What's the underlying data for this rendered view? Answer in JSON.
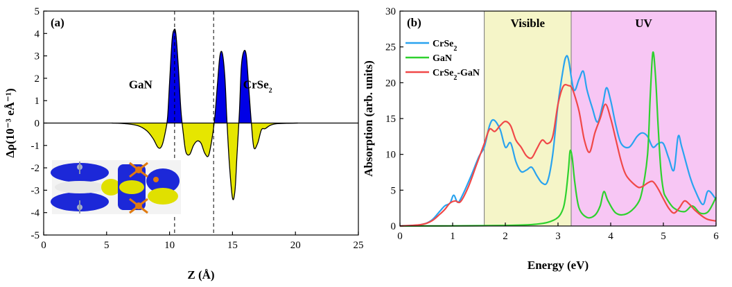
{
  "chart_data": [
    {
      "type": "area",
      "panel_label": "(a)",
      "xlabel": "Z (Å)",
      "ylabel": "Δρ(10⁻³ eÅ⁻¹)",
      "xlim": [
        0,
        25
      ],
      "ylim": [
        -5,
        5
      ],
      "xticks": [
        0,
        5,
        10,
        15,
        20,
        25
      ],
      "yticks": [
        -5,
        -4,
        -3,
        -2,
        -1,
        0,
        1,
        2,
        3,
        4,
        5
      ],
      "positive_fill_color": "#0000e6",
      "negative_fill_color": "#e6e600",
      "line_color": "#000000",
      "interfaces_dashed_x": [
        10.4,
        13.5
      ],
      "annotations": [
        {
          "text": "GaN",
          "x": 7.7,
          "y": 1.55
        },
        {
          "text": "CrSe",
          "sub": "2",
          "x": 17.0,
          "y": 1.55
        }
      ],
      "x": [
        5.4,
        6.5,
        7.5,
        8.2,
        8.7,
        9.1,
        9.4,
        9.7,
        9.85,
        10.0,
        10.2,
        10.35,
        10.5,
        10.7,
        10.9,
        11.1,
        11.3,
        11.6,
        11.9,
        12.2,
        12.5,
        12.8,
        13.1,
        13.4,
        13.6,
        13.8,
        14.0,
        14.2,
        14.4,
        14.55,
        14.75,
        15.0,
        15.2,
        15.35,
        15.55,
        15.7,
        15.9,
        16.1,
        16.3,
        16.5,
        16.7,
        17.0,
        17.3,
        17.6,
        18.0,
        18.5,
        19.3,
        20.2
      ],
      "y": [
        0,
        -0.03,
        -0.12,
        -0.35,
        -0.7,
        -1.1,
        -1.0,
        -0.3,
        0.3,
        1.8,
        3.7,
        4.15,
        4.0,
        2.5,
        0.6,
        -0.5,
        -1.3,
        -1.4,
        -1.0,
        -0.8,
        -0.9,
        -1.35,
        -1.45,
        -0.6,
        0.3,
        1.7,
        3.0,
        3.1,
        2.0,
        0.2,
        -1.8,
        -3.35,
        -3.0,
        -1.5,
        0.5,
        2.5,
        3.2,
        3.0,
        1.5,
        0.0,
        -1.1,
        -0.9,
        -0.3,
        -0.25,
        -0.1,
        -0.03,
        -0.01,
        0
      ],
      "inset": {
        "description_none": ""
      }
    },
    {
      "type": "line",
      "panel_label": "(b)",
      "xlabel": "Energy (eV)",
      "ylabel": "Absorption (arb. units)",
      "xlim": [
        0,
        6
      ],
      "ylim": [
        0,
        30
      ],
      "xticks": [
        0,
        1,
        2,
        3,
        4,
        5,
        6
      ],
      "yticks": [
        0,
        5,
        10,
        15,
        20,
        25,
        30
      ],
      "regions": [
        {
          "label": "Visible",
          "from": 1.6,
          "to": 3.25,
          "color": "#f5f5c8"
        },
        {
          "label": "UV",
          "from": 3.25,
          "to": 6.0,
          "color": "#f7c6f4"
        }
      ],
      "series": [
        {
          "name": "CrSe",
          "name_sub": "2",
          "name_suffix": "",
          "color": "#29a3ef",
          "x": [
            0,
            0.4,
            0.6,
            0.75,
            0.85,
            0.95,
            1.02,
            1.1,
            1.2,
            1.35,
            1.5,
            1.6,
            1.7,
            1.78,
            1.9,
            2.0,
            2.1,
            2.2,
            2.3,
            2.4,
            2.5,
            2.6,
            2.7,
            2.8,
            2.9,
            3.0,
            3.1,
            3.15,
            3.2,
            3.3,
            3.4,
            3.48,
            3.55,
            3.65,
            3.75,
            3.85,
            3.92,
            4.0,
            4.1,
            4.2,
            4.35,
            4.5,
            4.6,
            4.7,
            4.8,
            4.9,
            5.0,
            5.1,
            5.2,
            5.28,
            5.35,
            5.5,
            5.6,
            5.75,
            5.85,
            6.0
          ],
          "y": [
            0,
            0.2,
            0.8,
            2.0,
            2.8,
            3.2,
            4.3,
            3.3,
            4.5,
            7.0,
            9.7,
            11.0,
            14.0,
            14.8,
            13.5,
            11.0,
            11.6,
            9.0,
            7.6,
            7.8,
            8.2,
            7.0,
            6.0,
            6.2,
            10.0,
            17.0,
            22.0,
            23.6,
            23.2,
            19.0,
            20.5,
            21.6,
            19.0,
            16.5,
            14.5,
            17.0,
            19.3,
            17.5,
            14.0,
            11.5,
            11.0,
            12.5,
            13.0,
            12.5,
            11.0,
            11.5,
            11.5,
            9.5,
            7.8,
            12.5,
            11.0,
            7.0,
            5.0,
            3.0,
            4.9,
            3.7
          ]
        },
        {
          "name": "GaN",
          "name_sub": "",
          "name_suffix": "",
          "color": "#2ed12e",
          "x": [
            0,
            1.0,
            2.0,
            2.5,
            2.8,
            3.0,
            3.1,
            3.15,
            3.2,
            3.23,
            3.27,
            3.32,
            3.4,
            3.55,
            3.7,
            3.8,
            3.87,
            3.95,
            4.1,
            4.3,
            4.5,
            4.6,
            4.7,
            4.75,
            4.8,
            4.85,
            4.9,
            4.95,
            5.0,
            5.05,
            5.2,
            5.4,
            5.55,
            5.7,
            5.85,
            6.0
          ],
          "y": [
            0,
            0.02,
            0.08,
            0.2,
            0.5,
            1.2,
            2.5,
            4.5,
            8.0,
            10.5,
            9.5,
            6.0,
            2.5,
            1.2,
            1.5,
            2.8,
            4.8,
            3.5,
            1.8,
            1.7,
            3.0,
            5.0,
            10.0,
            18.0,
            24.2,
            21.0,
            14.0,
            8.0,
            5.0,
            4.0,
            2.5,
            2.0,
            2.8,
            1.8,
            2.0,
            4.0
          ]
        },
        {
          "name": "CrSe",
          "name_sub": "2",
          "name_suffix": "-GaN",
          "color": "#f04848",
          "x": [
            0,
            0.4,
            0.6,
            0.75,
            0.85,
            0.95,
            1.05,
            1.15,
            1.3,
            1.45,
            1.6,
            1.7,
            1.8,
            1.9,
            2.0,
            2.1,
            2.2,
            2.3,
            2.4,
            2.5,
            2.6,
            2.7,
            2.8,
            2.9,
            3.0,
            3.1,
            3.2,
            3.25,
            3.3,
            3.4,
            3.5,
            3.6,
            3.7,
            3.8,
            3.9,
            4.0,
            4.1,
            4.2,
            4.3,
            4.5,
            4.6,
            4.7,
            4.8,
            4.9,
            5.0,
            5.1,
            5.2,
            5.3,
            5.4,
            5.5,
            5.6,
            5.75,
            5.85,
            6.0
          ],
          "y": [
            0,
            0.2,
            0.7,
            1.6,
            2.3,
            3.2,
            3.5,
            3.4,
            5.5,
            8.5,
            11.5,
            13.5,
            13.2,
            14.0,
            14.6,
            14.0,
            12.0,
            11.0,
            9.8,
            9.5,
            10.8,
            12.0,
            11.5,
            12.5,
            17.0,
            19.5,
            19.6,
            19.4,
            18.6,
            16.0,
            12.0,
            10.3,
            13.0,
            15.0,
            17.0,
            15.0,
            12.0,
            9.0,
            7.0,
            5.5,
            5.5,
            6.0,
            6.2,
            5.2,
            3.8,
            2.5,
            1.8,
            2.5,
            3.5,
            3.0,
            2.2,
            1.3,
            0.9,
            0.7
          ]
        }
      ]
    }
  ]
}
